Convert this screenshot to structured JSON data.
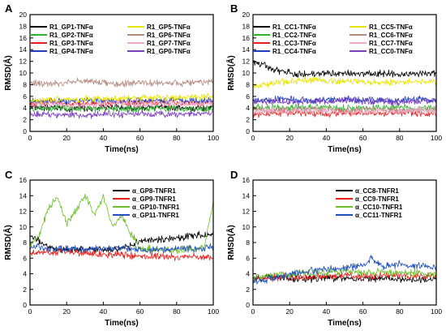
{
  "chart_data": [
    {
      "panel": "A",
      "type": "line",
      "xlabel": "Time(ns)",
      "ylabel": "RMSD(Å)",
      "xlim": [
        0,
        100
      ],
      "ylim": [
        0,
        20
      ],
      "xticks": [
        0,
        20,
        40,
        60,
        80,
        100
      ],
      "yticks": [
        0,
        2,
        4,
        6,
        8,
        10,
        12,
        14,
        16,
        18,
        20
      ],
      "legend_position": "top",
      "series": [
        {
          "name": "R1_GP1-TNFα",
          "color": "#000000",
          "x": [
            0,
            10,
            20,
            30,
            40,
            50,
            60,
            70,
            80,
            90,
            100
          ],
          "y": [
            4.2,
            4.1,
            4.0,
            4.0,
            4.2,
            4.1,
            4.0,
            4.1,
            4.0,
            4.0,
            4.1
          ]
        },
        {
          "name": "R1_GP2-TNFα",
          "color": "#2db52d",
          "x": [
            0,
            10,
            20,
            30,
            40,
            50,
            60,
            70,
            80,
            90,
            100
          ],
          "y": [
            3.8,
            3.9,
            4.0,
            3.9,
            3.7,
            3.8,
            3.9,
            4.0,
            3.9,
            3.8,
            3.9
          ]
        },
        {
          "name": "R1_GP3-TNFα",
          "color": "#e8201c",
          "x": [
            0,
            10,
            20,
            30,
            40,
            50,
            60,
            70,
            80,
            90,
            100
          ],
          "y": [
            4.8,
            5.0,
            4.9,
            4.7,
            4.8,
            4.9,
            5.0,
            4.8,
            4.9,
            4.8,
            4.9
          ]
        },
        {
          "name": "R1_GP4-TNFα",
          "color": "#1f3fbf",
          "x": [
            0,
            10,
            20,
            30,
            40,
            50,
            60,
            70,
            80,
            90,
            100
          ],
          "y": [
            5.0,
            5.2,
            5.1,
            5.3,
            5.2,
            5.1,
            5.2,
            5.3,
            5.2,
            5.3,
            5.2
          ]
        },
        {
          "name": "R1_GP5-TNFα",
          "color": "#e6e600",
          "x": [
            0,
            10,
            20,
            30,
            40,
            50,
            60,
            70,
            80,
            90,
            100
          ],
          "y": [
            5.2,
            5.4,
            5.5,
            5.6,
            5.5,
            5.7,
            5.8,
            5.9,
            5.8,
            5.9,
            6.0
          ]
        },
        {
          "name": "R1_GP6-TNFα",
          "color": "#b58a7f",
          "x": [
            0,
            10,
            20,
            30,
            40,
            50,
            60,
            70,
            80,
            90,
            100
          ],
          "y": [
            8.3,
            8.2,
            8.3,
            8.8,
            8.3,
            8.1,
            8.3,
            8.2,
            8.3,
            8.4,
            8.5
          ]
        },
        {
          "name": "R1_GP7-TNFα",
          "color": "#f2a9c4",
          "x": [
            0,
            10,
            20,
            30,
            40,
            50,
            60,
            70,
            80,
            90,
            100
          ],
          "y": [
            4.5,
            4.7,
            4.6,
            4.5,
            4.7,
            4.8,
            4.6,
            4.7,
            4.6,
            4.8,
            4.7
          ]
        },
        {
          "name": "R1_GP0-TNFα",
          "color": "#7a3fbf",
          "x": [
            0,
            10,
            20,
            30,
            40,
            50,
            60,
            70,
            80,
            90,
            100
          ],
          "y": [
            2.8,
            3.0,
            2.9,
            2.8,
            3.0,
            2.9,
            3.1,
            3.0,
            2.9,
            3.0,
            3.1
          ]
        }
      ]
    },
    {
      "panel": "B",
      "type": "line",
      "xlabel": "Time(ns)",
      "ylabel": "RMSD(Å)",
      "xlim": [
        0,
        100
      ],
      "ylim": [
        0,
        20
      ],
      "xticks": [
        0,
        20,
        40,
        60,
        80,
        100
      ],
      "yticks": [
        0,
        2,
        4,
        6,
        8,
        10,
        12,
        14,
        16,
        18,
        20
      ],
      "legend_position": "top",
      "series": [
        {
          "name": "R1_CC1-TNFα",
          "color": "#000000",
          "x": [
            0,
            5,
            10,
            20,
            30,
            40,
            50,
            60,
            70,
            80,
            90,
            100
          ],
          "y": [
            12.0,
            11.6,
            10.6,
            10.0,
            9.8,
            9.9,
            10.0,
            9.8,
            9.9,
            9.8,
            10.0,
            9.9
          ]
        },
        {
          "name": "R1_CC2-TNFα",
          "color": "#2db52d",
          "x": [
            0,
            10,
            20,
            30,
            40,
            50,
            60,
            70,
            80,
            90,
            100
          ],
          "y": [
            4.2,
            4.0,
            4.1,
            4.0,
            4.2,
            4.0,
            3.9,
            4.0,
            4.1,
            4.0,
            3.9
          ]
        },
        {
          "name": "R1_CC3-TNFα",
          "color": "#e8201c",
          "x": [
            0,
            10,
            20,
            30,
            40,
            50,
            60,
            70,
            80,
            90,
            100
          ],
          "y": [
            2.8,
            3.0,
            3.2,
            3.1,
            3.0,
            3.2,
            3.1,
            3.0,
            3.2,
            3.1,
            3.0
          ]
        },
        {
          "name": "R1_CC4-TNFα",
          "color": "#1f3fbf",
          "x": [
            0,
            10,
            20,
            30,
            40,
            50,
            60,
            70,
            80,
            90,
            100
          ],
          "y": [
            5.3,
            5.4,
            5.5,
            5.3,
            5.4,
            5.5,
            5.4,
            5.3,
            5.4,
            5.5,
            5.4
          ]
        },
        {
          "name": "R1_CC5-TNFα",
          "color": "#e6e600",
          "x": [
            0,
            10,
            20,
            30,
            40,
            50,
            60,
            70,
            80,
            90,
            100
          ],
          "y": [
            7.8,
            8.2,
            8.6,
            8.8,
            8.7,
            8.5,
            8.6,
            8.4,
            8.5,
            8.6,
            8.5
          ]
        },
        {
          "name": "R1_CC6-TNFα",
          "color": "#b58a7f",
          "x": [
            0,
            10,
            20,
            30,
            40,
            50,
            60,
            70,
            80,
            90,
            100
          ],
          "y": [
            3.8,
            3.6,
            3.7,
            3.9,
            3.7,
            3.6,
            3.8,
            3.7,
            3.6,
            3.7,
            3.8
          ]
        },
        {
          "name": "R1_CC7-TNFα",
          "color": "#f2a9c4",
          "x": [
            0,
            10,
            20,
            30,
            40,
            50,
            60,
            70,
            80,
            90,
            100
          ],
          "y": [
            3.3,
            3.5,
            3.4,
            3.6,
            3.5,
            3.3,
            3.4,
            3.5,
            3.4,
            3.6,
            3.5
          ]
        },
        {
          "name": "R1_CC0-TNFα",
          "color": "#7a3fbf",
          "x": [
            0,
            10,
            20,
            30,
            40,
            50,
            60,
            70,
            80,
            90,
            100
          ],
          "y": [
            5.1,
            5.2,
            5.0,
            5.1,
            5.2,
            5.3,
            5.1,
            5.2,
            5.0,
            5.1,
            5.2
          ]
        }
      ]
    },
    {
      "panel": "C",
      "type": "line",
      "xlabel": "Time(ns)",
      "ylabel": "RMSD(Å)",
      "xlim": [
        0,
        100
      ],
      "ylim": [
        0,
        16
      ],
      "xticks": [
        0,
        20,
        40,
        60,
        80,
        100
      ],
      "yticks": [
        0,
        2,
        4,
        6,
        8,
        10,
        12,
        14,
        16
      ],
      "legend_position": "top-right",
      "series": [
        {
          "name": "α_GP8-TNFR1",
          "color": "#000000",
          "x": [
            0,
            5,
            10,
            20,
            30,
            40,
            50,
            55,
            60,
            70,
            80,
            90,
            100
          ],
          "y": [
            8.6,
            8.2,
            7.4,
            7.0,
            7.2,
            7.1,
            7.3,
            7.5,
            8.2,
            8.4,
            8.6,
            8.9,
            9.1
          ]
        },
        {
          "name": "α_GP9-TNFR1",
          "color": "#e8201c",
          "x": [
            0,
            5,
            10,
            20,
            30,
            40,
            50,
            60,
            70,
            80,
            90,
            100
          ],
          "y": [
            6.4,
            6.8,
            6.7,
            6.9,
            6.6,
            6.5,
            6.4,
            6.2,
            6.3,
            6.1,
            6.2,
            6.1
          ]
        },
        {
          "name": "α_GP10-TNFR1",
          "color": "#6dbf2a",
          "x": [
            0,
            5,
            10,
            15,
            20,
            25,
            30,
            35,
            40,
            45,
            50,
            55,
            60,
            70,
            80,
            90,
            95,
            100
          ],
          "y": [
            7.8,
            8.8,
            12.5,
            13.8,
            10.5,
            12.0,
            14.2,
            11.5,
            13.8,
            10.2,
            11.5,
            9.2,
            7.3,
            7.1,
            7.0,
            7.2,
            7.3,
            13.5
          ]
        },
        {
          "name": "α_GP11-TNFR1",
          "color": "#1f4fbf",
          "x": [
            0,
            5,
            10,
            20,
            30,
            40,
            50,
            60,
            70,
            80,
            90,
            100
          ],
          "y": [
            7.2,
            7.6,
            7.0,
            7.3,
            7.1,
            7.2,
            7.3,
            7.1,
            7.0,
            7.2,
            7.1,
            7.4
          ]
        }
      ]
    },
    {
      "panel": "D",
      "type": "line",
      "xlabel": "Time(ns)",
      "ylabel": "RMSD(Å)",
      "xlim": [
        0,
        100
      ],
      "ylim": [
        0,
        16
      ],
      "xticks": [
        0,
        20,
        40,
        60,
        80,
        100
      ],
      "yticks": [
        0,
        2,
        4,
        6,
        8,
        10,
        12,
        14,
        16
      ],
      "legend_position": "top-right",
      "series": [
        {
          "name": "α_CC8-TNFR1",
          "color": "#000000",
          "x": [
            0,
            10,
            20,
            30,
            40,
            50,
            60,
            70,
            80,
            90,
            100
          ],
          "y": [
            3.2,
            3.6,
            3.4,
            3.3,
            3.5,
            3.4,
            3.3,
            3.4,
            3.3,
            3.2,
            3.3
          ]
        },
        {
          "name": "α_CC9-TNFR1",
          "color": "#e8201c",
          "x": [
            0,
            10,
            20,
            30,
            40,
            50,
            60,
            70,
            80,
            90,
            100
          ],
          "y": [
            3.4,
            3.5,
            3.6,
            3.5,
            3.7,
            3.8,
            3.6,
            3.7,
            3.8,
            3.6,
            3.7
          ]
        },
        {
          "name": "α_CC10-TNFR1",
          "color": "#6dbf2a",
          "x": [
            0,
            10,
            20,
            30,
            40,
            50,
            60,
            70,
            80,
            90,
            100
          ],
          "y": [
            3.6,
            3.8,
            4.0,
            4.2,
            4.1,
            4.4,
            4.2,
            4.3,
            4.1,
            4.2,
            4.0
          ]
        },
        {
          "name": "α_CC11-TNFR1",
          "color": "#1f4fbf",
          "x": [
            0,
            10,
            20,
            30,
            40,
            50,
            60,
            65,
            70,
            80,
            90,
            100
          ],
          "y": [
            3.0,
            3.4,
            3.9,
            4.3,
            4.6,
            4.8,
            5.0,
            6.0,
            4.9,
            5.2,
            5.0,
            4.8
          ]
        }
      ]
    }
  ]
}
